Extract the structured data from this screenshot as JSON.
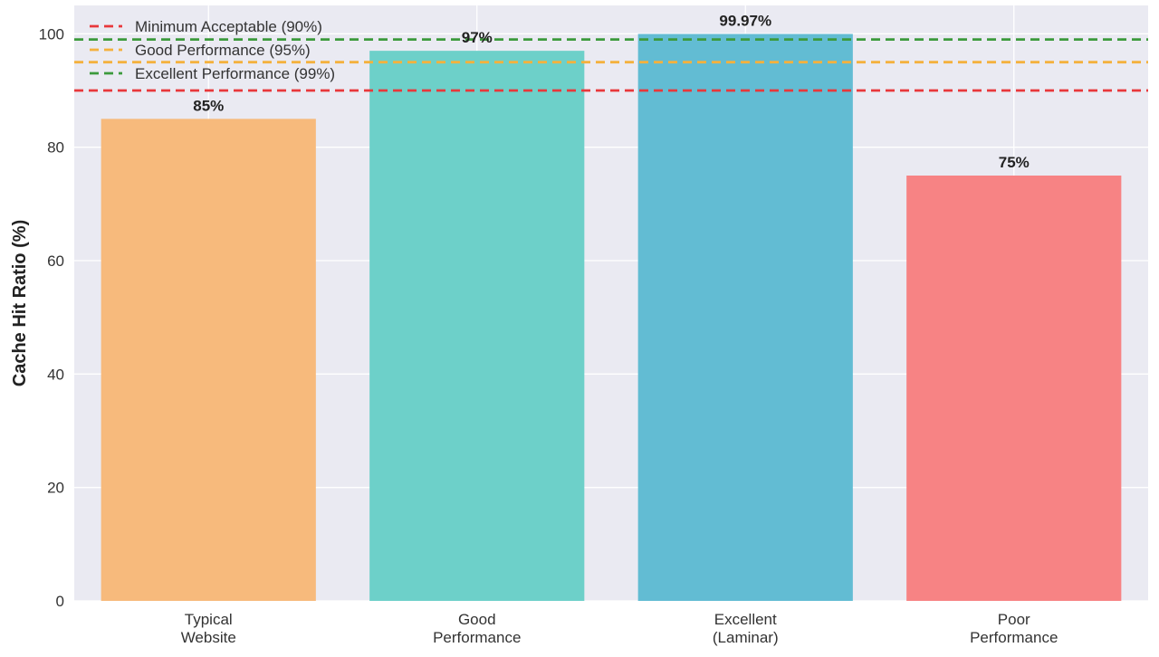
{
  "chart_data": {
    "type": "bar",
    "categories": [
      [
        "Typical",
        "Website"
      ],
      [
        "Good",
        "Performance"
      ],
      [
        "Excellent",
        "(Laminar)"
      ],
      [
        "Poor",
        "Performance"
      ]
    ],
    "values": [
      85,
      97,
      99.97,
      75
    ],
    "value_labels": [
      "85%",
      "97%",
      "99.97%",
      "75%"
    ],
    "bar_colors": [
      "#F7BA7C",
      "#6DD0C9",
      "#62BCD3",
      "#F78384"
    ],
    "ylabel": "Cache Hit Ratio (%)",
    "ylim": [
      0,
      105
    ],
    "yticks": [
      0,
      20,
      40,
      60,
      80,
      100
    ],
    "grid": true,
    "background": "#EAEAF2",
    "legend_position": "top-left",
    "reference_lines": [
      {
        "label": "Minimum Acceptable (90%)",
        "value": 90,
        "color": "#E8383B"
      },
      {
        "label": "Good Performance (95%)",
        "value": 95,
        "color": "#F4B13D"
      },
      {
        "label": "Excellent Performance (99%)",
        "value": 99,
        "color": "#3C9A3C"
      }
    ]
  }
}
